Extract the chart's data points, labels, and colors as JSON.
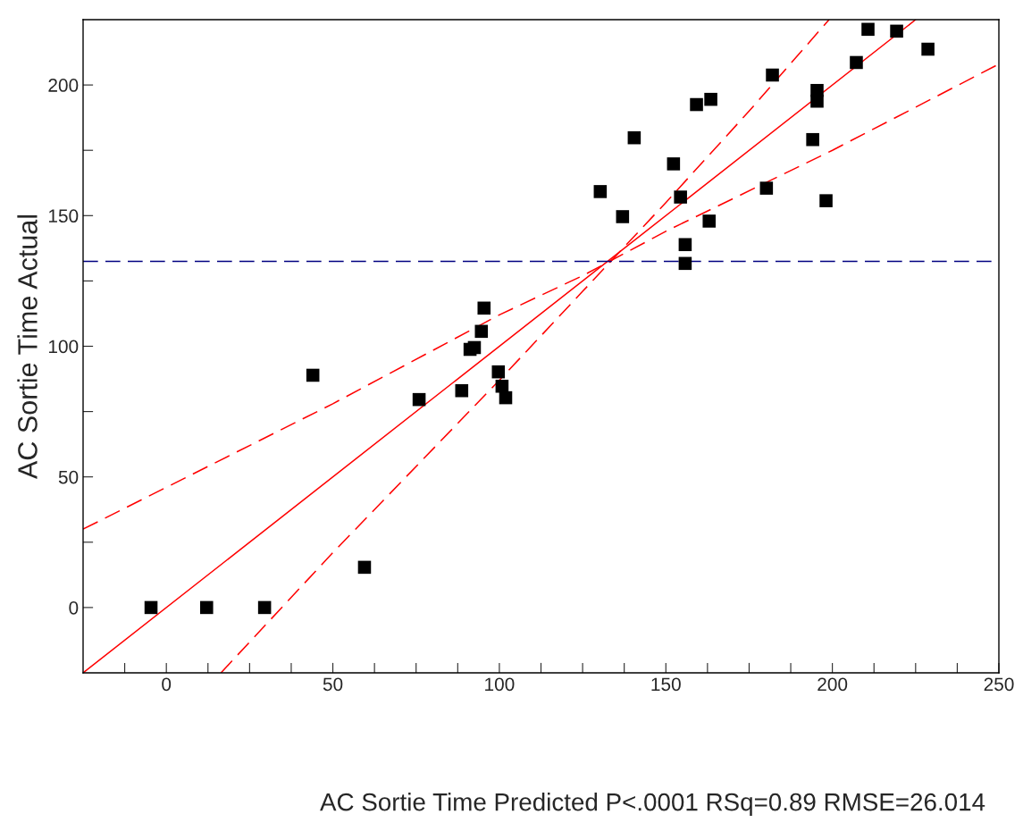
{
  "chart_data": {
    "type": "scatter",
    "ylabel": "AC Sortie Time Actual",
    "xlabel": "AC Sortie Time Predicted P<.0001 RSq=0.89 RMSE=26.014",
    "xlim": [
      -25,
      250
    ],
    "ylim": [
      -25,
      225
    ],
    "xticks": [
      {
        "value": -12.5,
        "label": null
      },
      0,
      {
        "value": 12.5,
        "label": null
      },
      {
        "value": 25,
        "label": null
      },
      {
        "value": 37.5,
        "label": null
      },
      50,
      {
        "value": 62.5,
        "label": null
      },
      {
        "value": 75,
        "label": null
      },
      {
        "value": 87.5,
        "label": null
      },
      100,
      {
        "value": 112.5,
        "label": null
      },
      {
        "value": 125,
        "label": null
      },
      {
        "value": 137.5,
        "label": null
      },
      150,
      {
        "value": 162.5,
        "label": null
      },
      {
        "value": 175,
        "label": null
      },
      {
        "value": 187.5,
        "label": null
      },
      200,
      {
        "value": 212.5,
        "label": null
      },
      {
        "value": 225,
        "label": null
      },
      {
        "value": 237.5,
        "label": null
      },
      250
    ],
    "yticks": [
      0,
      {
        "value": 25,
        "label": null
      },
      50,
      {
        "value": 75,
        "label": null
      },
      100,
      {
        "value": 125,
        "label": null
      },
      150,
      {
        "value": 175,
        "label": null
      },
      200
    ],
    "grid": false,
    "legend": false,
    "ref_lines": [
      {
        "axis": "y",
        "value": 132.5,
        "color": "#000080",
        "line_style": "dashed"
      }
    ],
    "series": [
      {
        "color": "#000000",
        "marker": "square",
        "x": [
          -4.6,
          12.1,
          29.5,
          44.0,
          59.5,
          75.9,
          88.7,
          91.2,
          92.5,
          94.6,
          95.4,
          99.7,
          100.8,
          101.9,
          130.3,
          137.0,
          140.5,
          152.3,
          154.4,
          155.8,
          155.8,
          159.2,
          163.5,
          163.0,
          180.2,
          182.0,
          194.1,
          195.4,
          195.4,
          198.1,
          207.2,
          210.7,
          219.3,
          228.7
        ],
        "values": [
          0,
          0,
          0,
          88.9,
          15.4,
          79.6,
          83.0,
          98.8,
          99.5,
          105.7,
          114.6,
          90.2,
          84.7,
          80.3,
          159.2,
          149.6,
          179.8,
          169.8,
          157.1,
          138.9,
          131.7,
          192.5,
          194.5,
          147.9,
          160.5,
          203.8,
          179.1,
          197.9,
          193.8,
          155.7,
          208.6,
          221.3,
          220.6,
          213.7
        ]
      },
      {
        "type": "line",
        "color": "#ff0000",
        "line_style": "solid",
        "marker": "none",
        "x": [
          -25,
          225
        ],
        "values": [
          -25,
          225
        ]
      },
      {
        "type": "line",
        "color": "#ff0000",
        "line_style": "dashed",
        "marker": "none",
        "x": [
          -25,
          0,
          50,
          100,
          125,
          150,
          200,
          250
        ],
        "values": [
          30,
          46,
          78,
          112,
          127,
          144,
          175,
          208
        ]
      },
      {
        "type": "line",
        "color": "#ff0000",
        "line_style": "dashed",
        "marker": "none",
        "x": [
          16.4,
          50,
          100,
          125,
          150,
          175,
          199
        ],
        "values": [
          -25,
          21,
          87,
          121,
          155,
          190,
          225
        ]
      }
    ]
  }
}
